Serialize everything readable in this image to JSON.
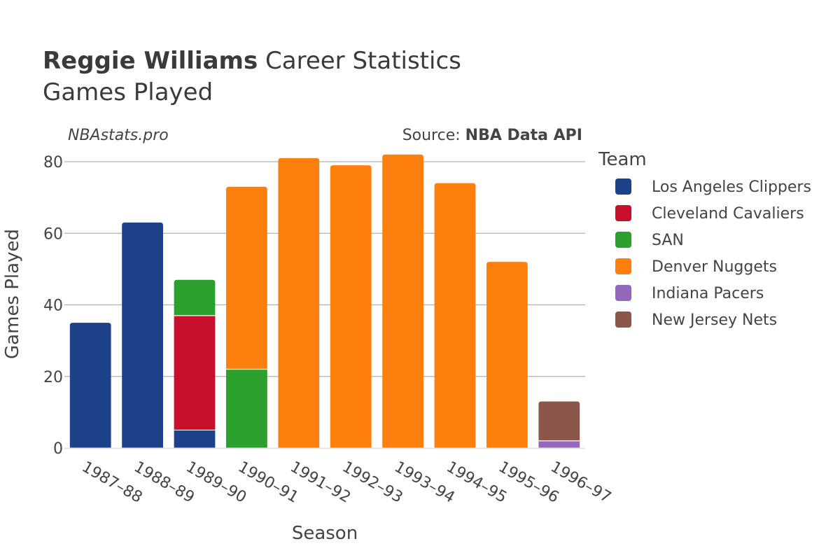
{
  "header": {
    "player_name": "Reggie Williams",
    "title_suffix": "Career Statistics",
    "subtitle": "Games Played"
  },
  "watermark": {
    "site": "NBAstats.pro",
    "source_label": "Source: ",
    "source_name": "NBA Data API"
  },
  "colors": {
    "Los Angeles Clippers": "#1d428a",
    "Cleveland Cavaliers": "#c8102e",
    "SAN": "#2ca02c",
    "Denver Nuggets": "#ff7f0e",
    "Indiana Pacers": "#9467bd",
    "New Jersey Nets": "#8c564b"
  },
  "chart_data": {
    "type": "bar",
    "stacked": true,
    "xlabel": "Season",
    "ylabel": "Games Played",
    "ylim": [
      0,
      84
    ],
    "yticks": [
      0,
      20,
      40,
      60,
      80
    ],
    "grid": true,
    "legend_title": "Team",
    "legend_position": "right",
    "categories": [
      "1987–88",
      "1988–89",
      "1989–90",
      "1990–91",
      "1991–92",
      "1992–93",
      "1993–94",
      "1994–95",
      "1995–96",
      "1996–97"
    ],
    "series": [
      {
        "name": "Los Angeles Clippers",
        "values": [
          35,
          63,
          5,
          0,
          0,
          0,
          0,
          0,
          0,
          0
        ]
      },
      {
        "name": "Cleveland Cavaliers",
        "values": [
          0,
          0,
          32,
          0,
          0,
          0,
          0,
          0,
          0,
          0
        ]
      },
      {
        "name": "SAN",
        "values": [
          0,
          0,
          10,
          22,
          0,
          0,
          0,
          0,
          0,
          0
        ]
      },
      {
        "name": "Denver Nuggets",
        "values": [
          0,
          0,
          0,
          51,
          81,
          79,
          82,
          74,
          52,
          0
        ]
      },
      {
        "name": "Indiana Pacers",
        "values": [
          0,
          0,
          0,
          0,
          0,
          0,
          0,
          0,
          0,
          2
        ]
      },
      {
        "name": "New Jersey Nets",
        "values": [
          0,
          0,
          0,
          0,
          0,
          0,
          0,
          0,
          0,
          11
        ]
      }
    ]
  }
}
